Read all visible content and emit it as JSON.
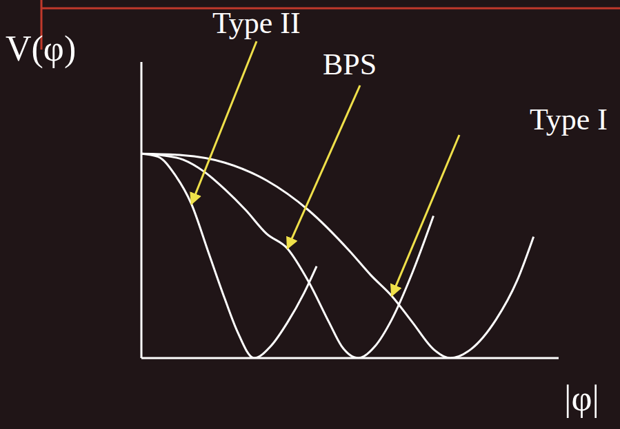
{
  "chart_data": {
    "type": "line",
    "x_label": "|φ|",
    "y_label": "V(φ)",
    "xlim": [
      0,
      10
    ],
    "ylim": [
      0,
      10
    ],
    "tick_labels": false,
    "grid": false,
    "series": [
      {
        "name": "Type II",
        "color": "#ffffff",
        "x": [
          0,
          0.4,
          0.8,
          1.2,
          1.6,
          2.0,
          2.3,
          2.7,
          3.1,
          3.5,
          3.9,
          4.2
        ],
        "values": [
          6.9,
          6.8,
          6.2,
          5.2,
          3.6,
          2.0,
          0.9,
          0,
          0.4,
          1.2,
          2.2,
          3.1
        ]
      },
      {
        "name": "BPS",
        "color": "#ffffff",
        "x": [
          0,
          0.5,
          1.0,
          1.5,
          2.0,
          2.5,
          3.0,
          3.5,
          4.0,
          4.5,
          4.8,
          5.2,
          5.6,
          6.0,
          6.5,
          7.0
        ],
        "values": [
          6.9,
          6.85,
          6.7,
          6.3,
          5.7,
          5.0,
          4.2,
          3.7,
          2.6,
          1.2,
          0.4,
          0,
          0.4,
          1.3,
          2.9,
          4.8
        ]
      },
      {
        "name": "Type I",
        "color": "#ffffff",
        "x": [
          0,
          1,
          2,
          3,
          4,
          5,
          5.5,
          6.0,
          6.5,
          7.0,
          7.4,
          7.9,
          8.5,
          9.0,
          9.4
        ],
        "values": [
          6.9,
          6.85,
          6.6,
          6.0,
          5.0,
          3.6,
          2.8,
          2.1,
          1.2,
          0.3,
          0,
          0.3,
          1.3,
          2.6,
          4.1
        ]
      }
    ]
  }
}
